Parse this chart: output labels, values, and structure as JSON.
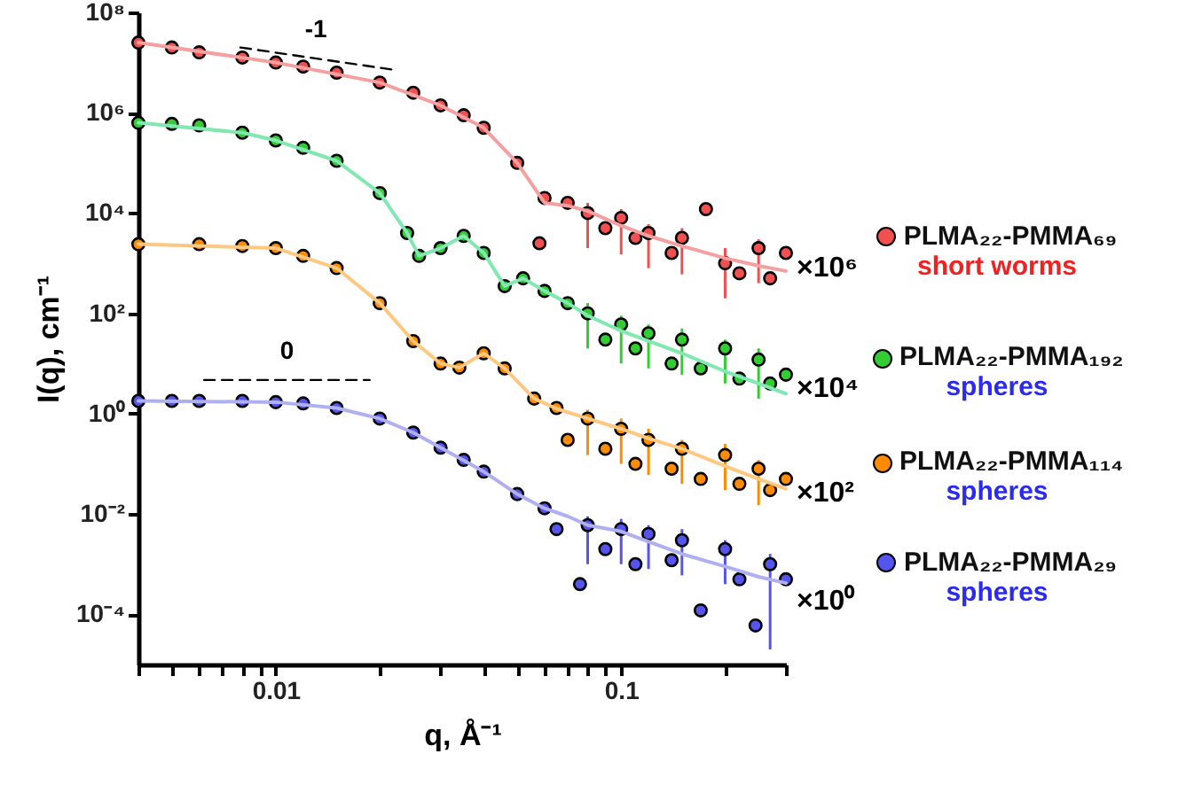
{
  "chart_data": {
    "type": "scatter",
    "xlabel": "q, Å⁻¹",
    "ylabel": "I(q), cm⁻¹",
    "log": "xy",
    "legend": "right",
    "xlim": [
      0.004,
      0.3
    ],
    "ylim": [
      1e-05,
      100000000.0
    ],
    "xticks": [
      {
        "value": 0.004,
        "label": null
      },
      {
        "value": 0.005,
        "label": null
      },
      {
        "value": 0.006,
        "label": null
      },
      {
        "value": 0.007,
        "label": null
      },
      {
        "value": 0.008,
        "label": null
      },
      {
        "value": 0.009,
        "label": null
      },
      0.01,
      {
        "value": 0.02,
        "label": null
      },
      {
        "value": 0.03,
        "label": null
      },
      {
        "value": 0.04,
        "label": null
      },
      {
        "value": 0.05,
        "label": null
      },
      {
        "value": 0.06,
        "label": null
      },
      {
        "value": 0.07,
        "label": null
      },
      {
        "value": 0.08,
        "label": null
      },
      {
        "value": 0.09,
        "label": null
      },
      0.1,
      {
        "value": 0.2,
        "label": null
      },
      {
        "value": 0.3,
        "label": null
      }
    ],
    "yticks": [
      {
        "value": 0.0001,
        "label": "10⁻⁴"
      },
      {
        "value": 0.01,
        "label": "10⁻²"
      },
      {
        "value": 1,
        "label": "10⁰"
      },
      {
        "value": 100,
        "label": "10²"
      },
      {
        "value": 10000.0,
        "label": "10⁴"
      },
      {
        "value": 1000000.0,
        "label": "10⁶"
      },
      {
        "value": 100000000.0,
        "label": "10⁸"
      }
    ],
    "annotations": [
      "×10⁶",
      "short worms",
      "×10⁴",
      "spheres",
      "×10²",
      "spheres",
      "×10⁰",
      "spheres"
    ],
    "series": [
      {
        "name": "PLMA₂₂-PMMA₆₉",
        "marker": "circle",
        "color": "#f05050",
        "x": [
          0.004,
          0.005,
          0.006,
          0.008,
          0.01,
          0.012,
          0.015,
          0.02,
          0.025,
          0.03,
          0.035,
          0.04,
          0.05,
          0.058,
          0.06,
          0.07,
          0.08,
          0.09,
          0.1,
          0.11,
          0.12,
          0.14,
          0.15,
          0.176,
          0.2,
          0.22,
          0.25,
          0.27,
          0.3
        ],
        "values": [
          25000000.0,
          20000000.0,
          16000000.0,
          12600000.0,
          10000000.0,
          8300000.0,
          6300000.0,
          4000000.0,
          2500000.0,
          1400000.0,
          890000.0,
          500000.0,
          100000.0,
          2500.0,
          20000.0,
          16000.0,
          10000.0,
          5000.0,
          8000.0,
          3200.0,
          4000.0,
          1600.0,
          3200.0,
          12000.0,
          1000.0,
          630.0,
          2000.0,
          500.0,
          1600.0
        ],
        "errors": [
          null,
          null,
          null,
          null,
          null,
          null,
          null,
          null,
          null,
          null,
          null,
          null,
          null,
          null,
          null,
          null,
          [
            2000.0,
            16000.0
          ],
          null,
          [
            1500.0,
            12000.0
          ],
          null,
          [
            800.0,
            6000.0
          ],
          null,
          [
            600.0,
            5000.0
          ],
          null,
          [
            200.0,
            2000.0
          ],
          null,
          [
            400.0,
            3000.0
          ],
          null,
          null
        ]
      },
      {
        "name": "PLMA₂₂-PMMA₁₉₂",
        "marker": "circle",
        "color": "#33cc33",
        "x": [
          0.004,
          0.005,
          0.006,
          0.008,
          0.01,
          0.012,
          0.015,
          0.02,
          0.024,
          0.026,
          0.03,
          0.035,
          0.04,
          0.046,
          0.052,
          0.06,
          0.07,
          0.08,
          0.09,
          0.1,
          0.11,
          0.12,
          0.14,
          0.15,
          0.17,
          0.2,
          0.22,
          0.25,
          0.27,
          0.3
        ],
        "values": [
          630000.0,
          600000.0,
          560000.0,
          400000.0,
          280000.0,
          200000.0,
          110000.0,
          25000.0,
          4000.0,
          1400.0,
          2000.0,
          3500.0,
          1600.0,
          350.0,
          500.0,
          280.0,
          160.0,
          100.0,
          30,
          60,
          20,
          40,
          10,
          30,
          8,
          20,
          5,
          12,
          4,
          6
        ],
        "errors": [
          null,
          null,
          null,
          null,
          null,
          null,
          null,
          null,
          null,
          null,
          null,
          null,
          null,
          null,
          null,
          null,
          null,
          [
            20,
            160.0
          ],
          null,
          [
            10,
            90
          ],
          null,
          [
            8,
            60
          ],
          null,
          [
            6,
            50
          ],
          null,
          [
            4,
            30
          ],
          null,
          [
            2,
            20
          ],
          null,
          null
        ]
      },
      {
        "name": "PLMA₂₂-PMMA₁₁₄",
        "marker": "circle",
        "color": "#ff8c00",
        "x": [
          0.004,
          0.006,
          0.008,
          0.01,
          0.012,
          0.015,
          0.02,
          0.025,
          0.03,
          0.034,
          0.04,
          0.046,
          0.056,
          0.065,
          0.07,
          0.08,
          0.09,
          0.1,
          0.11,
          0.12,
          0.14,
          0.15,
          0.17,
          0.2,
          0.22,
          0.25,
          0.27,
          0.3
        ],
        "values": [
          2400.0,
          2400.0,
          2200.0,
          2000.0,
          1400.0,
          800.0,
          160.0,
          28,
          10,
          8.3,
          16,
          8,
          2,
          1.3,
          0.3,
          0.8,
          0.2,
          0.5,
          0.1,
          0.3,
          0.08,
          0.2,
          0.05,
          0.15,
          0.04,
          0.08,
          0.03,
          0.05
        ],
        "errors": [
          null,
          null,
          null,
          null,
          null,
          null,
          null,
          null,
          null,
          null,
          null,
          null,
          null,
          null,
          null,
          [
            0.15,
            1.2
          ],
          null,
          [
            0.1,
            0.8
          ],
          null,
          [
            0.06,
            0.5
          ],
          null,
          [
            0.04,
            0.3
          ],
          null,
          [
            0.03,
            0.25
          ],
          null,
          [
            0.015,
            0.12
          ],
          null,
          null
        ]
      },
      {
        "name": "PLMA₂₂-PMMA₂₉",
        "marker": "circle",
        "color": "#5555ee",
        "x": [
          0.004,
          0.005,
          0.006,
          0.008,
          0.01,
          0.012,
          0.015,
          0.02,
          0.025,
          0.03,
          0.035,
          0.04,
          0.05,
          0.06,
          0.065,
          0.076,
          0.08,
          0.09,
          0.1,
          0.11,
          0.12,
          0.14,
          0.15,
          0.17,
          0.2,
          0.22,
          0.245,
          0.27,
          0.3
        ],
        "values": [
          1.8,
          1.8,
          1.8,
          1.8,
          1.7,
          1.6,
          1.3,
          0.8,
          0.42,
          0.21,
          0.12,
          0.07,
          0.025,
          0.013,
          0.005,
          0.0004,
          0.006,
          0.002,
          0.005,
          0.001,
          0.004,
          0.0012,
          0.003,
          0.00012,
          0.002,
          0.0005,
          6e-05,
          0.001,
          0.0005
        ],
        "errors": [
          null,
          null,
          null,
          null,
          null,
          null,
          null,
          null,
          null,
          null,
          null,
          null,
          null,
          null,
          null,
          null,
          [
            0.001,
            0.009
          ],
          null,
          [
            0.001,
            0.008
          ],
          null,
          [
            0.0008,
            0.006
          ],
          null,
          [
            0.0006,
            0.005
          ],
          null,
          [
            0.0004,
            0.003
          ],
          null,
          null,
          [
            2e-05,
            0.0016
          ],
          null
        ]
      },
      {
        "type": "line",
        "color": "#f4a0a0",
        "x": [
          0.004,
          0.01,
          0.02,
          0.03,
          0.04,
          0.05,
          0.06,
          0.07,
          0.08,
          0.1,
          0.12,
          0.15,
          0.2,
          0.25,
          0.3
        ],
        "values": [
          25000000.0,
          10000000.0,
          4000000.0,
          1400000.0,
          500000.0,
          100000.0,
          16000.0,
          14000.0,
          11000.0,
          5600.0,
          3500.0,
          2200.0,
          1260.0,
          890.0,
          700.0
        ]
      },
      {
        "type": "line",
        "color": "#80e8b0",
        "x": [
          0.004,
          0.008,
          0.01,
          0.015,
          0.02,
          0.024,
          0.026,
          0.03,
          0.035,
          0.04,
          0.046,
          0.052,
          0.06,
          0.07,
          0.08,
          0.1,
          0.12,
          0.15,
          0.2,
          0.25,
          0.3
        ],
        "values": [
          630000.0,
          400000.0,
          280000.0,
          110000.0,
          25000.0,
          4000.0,
          1400.0,
          2000.0,
          3500.0,
          1600.0,
          350.0,
          500.0,
          280.0,
          160.0,
          90,
          45,
          28,
          16,
          7,
          4,
          2.5
        ]
      },
      {
        "type": "line",
        "color": "#ffc880",
        "x": [
          0.004,
          0.01,
          0.015,
          0.02,
          0.025,
          0.03,
          0.034,
          0.04,
          0.046,
          0.056,
          0.065,
          0.08,
          0.1,
          0.12,
          0.15,
          0.2,
          0.25,
          0.3
        ],
        "values": [
          2400.0,
          2000.0,
          800.0,
          160.0,
          28,
          10,
          8.3,
          16,
          8,
          2,
          1.26,
          0.8,
          0.5,
          0.32,
          0.2,
          0.09,
          0.05,
          0.032
        ]
      },
      {
        "type": "line",
        "color": "#b0b0f0",
        "x": [
          0.004,
          0.01,
          0.015,
          0.02,
          0.025,
          0.03,
          0.04,
          0.05,
          0.06,
          0.07,
          0.08,
          0.1,
          0.12,
          0.15,
          0.2,
          0.25,
          0.3
        ],
        "values": [
          1.8,
          1.7,
          1.3,
          0.8,
          0.42,
          0.21,
          0.07,
          0.025,
          0.013,
          0.009,
          0.006,
          0.0045,
          0.0028,
          0.0016,
          0.0009,
          0.00056,
          0.00042
        ]
      },
      {
        "name": "-1",
        "type": "line",
        "color": "#000000",
        "line_style": "dashed",
        "x": [
          0.0079,
          0.0216
        ],
        "values": [
          20000000.0,
          7300000.0
        ]
      },
      {
        "name": "0",
        "type": "line",
        "color": "#000000",
        "line_style": "dashed",
        "x": [
          0.0062,
          0.0187
        ],
        "values": [
          4.7,
          4.7
        ]
      }
    ]
  }
}
